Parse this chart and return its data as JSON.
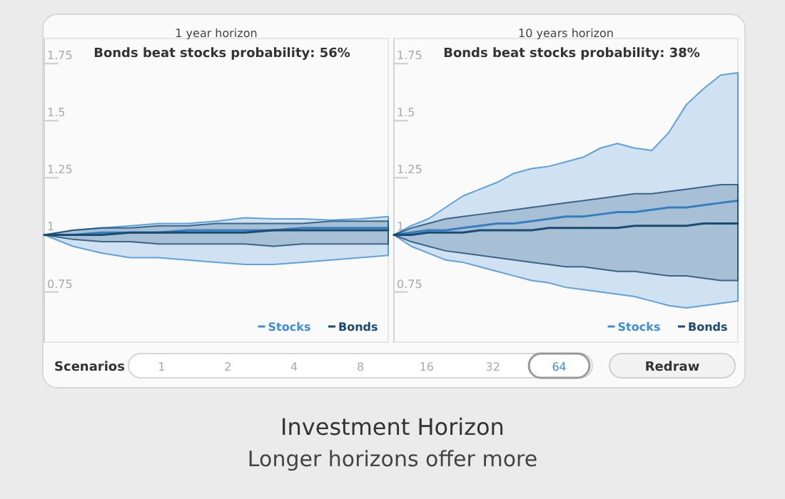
{
  "chart_data": [
    {
      "type": "line",
      "subtitle": "1 year horizon",
      "title": "Bonds beat stocks probability: 56%",
      "categories": [
        null,
        null,
        null,
        null,
        null,
        null,
        null,
        null,
        null,
        null,
        null,
        null,
        null
      ],
      "ylim": [
        0.53,
        1.86
      ],
      "yticks": [
        0.75,
        1,
        1.25,
        1.5,
        1.75
      ],
      "tick_labels": "y",
      "legend": "bottom right",
      "series": [
        {
          "name": "Stocks",
          "color": "#3d8fd6",
          "values": [
            1,
            1,
            1.01,
            1.01,
            1.01,
            1.02,
            1.02,
            1.02,
            1.02,
            1.03,
            1.03,
            1.03,
            1.03
          ],
          "lower": [
            1,
            0.95,
            0.92,
            0.9,
            0.9,
            0.89,
            0.88,
            0.87,
            0.87,
            0.88,
            0.89,
            0.9,
            0.91
          ],
          "upper": [
            1,
            1.02,
            1.03,
            1.04,
            1.05,
            1.05,
            1.06,
            1.075,
            1.07,
            1.07,
            1.065,
            1.07,
            1.08
          ]
        },
        {
          "name": "Bonds",
          "color": "#1b4a72",
          "values": [
            1,
            1,
            1,
            1.01,
            1.01,
            1.01,
            1.01,
            1.01,
            1.02,
            1.02,
            1.02,
            1.02,
            1.02
          ],
          "lower": [
            1,
            0.98,
            0.97,
            0.97,
            0.96,
            0.96,
            0.96,
            0.96,
            0.95,
            0.96,
            0.96,
            0.96,
            0.96
          ],
          "upper": [
            1,
            1.02,
            1.03,
            1.03,
            1.04,
            1.04,
            1.05,
            1.05,
            1.05,
            1.05,
            1.06,
            1.06,
            1.06
          ]
        }
      ]
    },
    {
      "type": "line",
      "subtitle": "10 years horizon",
      "title": "Bonds beat stocks probability: 38%",
      "categories": [
        null,
        null,
        null,
        null,
        null,
        null,
        null,
        null,
        null,
        null,
        null,
        null,
        null,
        null,
        null,
        null,
        null,
        null,
        null,
        null,
        null
      ],
      "ylim": [
        0.53,
        1.86
      ],
      "yticks": [
        0.75,
        1,
        1.25,
        1.5,
        1.75
      ],
      "tick_labels": "y",
      "legend": "bottom right",
      "series": [
        {
          "name": "Stocks",
          "color": "#3d8fd6",
          "values": [
            1,
            1.01,
            1.02,
            1.02,
            1.03,
            1.04,
            1.05,
            1.05,
            1.06,
            1.07,
            1.08,
            1.08,
            1.09,
            1.1,
            1.1,
            1.11,
            1.12,
            1.12,
            1.13,
            1.14,
            1.15
          ],
          "lower": [
            1,
            0.95,
            0.92,
            0.89,
            0.88,
            0.86,
            0.84,
            0.82,
            0.8,
            0.79,
            0.77,
            0.76,
            0.75,
            0.74,
            0.73,
            0.71,
            0.69,
            0.68,
            0.69,
            0.7,
            0.71
          ],
          "upper": [
            1,
            1.04,
            1.07,
            1.12,
            1.17,
            1.2,
            1.23,
            1.27,
            1.29,
            1.3,
            1.32,
            1.34,
            1.38,
            1.4,
            1.38,
            1.37,
            1.45,
            1.57,
            1.64,
            1.7,
            1.71
          ]
        },
        {
          "name": "Bonds",
          "color": "#1b4a72",
          "values": [
            1,
            1,
            1.01,
            1.01,
            1.01,
            1.02,
            1.02,
            1.02,
            1.02,
            1.03,
            1.03,
            1.03,
            1.03,
            1.03,
            1.04,
            1.04,
            1.04,
            1.04,
            1.05,
            1.05,
            1.05
          ],
          "lower": [
            1,
            0.97,
            0.95,
            0.93,
            0.92,
            0.91,
            0.9,
            0.89,
            0.88,
            0.87,
            0.86,
            0.86,
            0.85,
            0.84,
            0.84,
            0.83,
            0.82,
            0.82,
            0.81,
            0.8,
            0.8
          ],
          "upper": [
            1,
            1.03,
            1.05,
            1.07,
            1.08,
            1.09,
            1.1,
            1.11,
            1.12,
            1.13,
            1.14,
            1.15,
            1.16,
            1.17,
            1.18,
            1.18,
            1.19,
            1.2,
            1.21,
            1.22,
            1.22
          ]
        }
      ]
    },
    {
      "type": "other",
      "title": "Investment Horizon",
      "subtitle": "Longer horizons offer more",
      "categories": [
        "1",
        "2",
        "4",
        "8",
        "16",
        "32",
        "64"
      ],
      "annotations": [
        "Scenarios",
        "Redraw"
      ]
    }
  ]
}
